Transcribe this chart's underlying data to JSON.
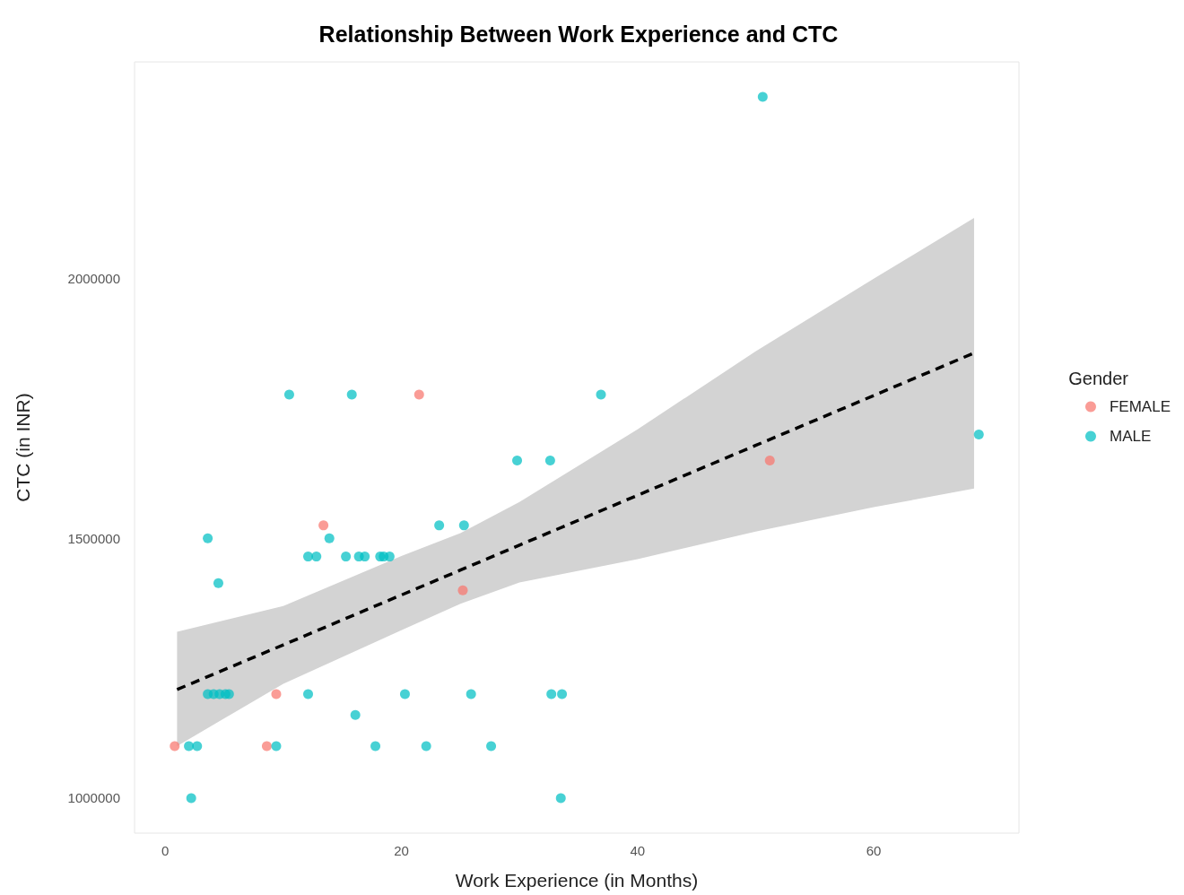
{
  "chart_data": {
    "type": "scatter",
    "title": "Relationship Between Work Experience and CTC",
    "xlabel": "Work Experience (in Months)",
    "ylabel": "CTC (in INR)",
    "legend_title": "Gender",
    "xlim": [
      -2.6,
      72.3
    ],
    "xticks": [
      0,
      20,
      40,
      60
    ],
    "ylim": [
      932500,
      2417500
    ],
    "yticks": [
      1000000,
      1500000,
      2000000
    ],
    "grid": false,
    "legend": "right",
    "marker": "circle",
    "series": [
      {
        "name": "FEMALE",
        "color": "#f8766d",
        "x": [
          21.5,
          13.4,
          25.2,
          9.4,
          0.8,
          8.6,
          51.2
        ],
        "values": [
          1777000,
          1525000,
          1400000,
          1200000,
          1100000,
          1100000,
          1650000
        ]
      },
      {
        "name": "MALE",
        "color": "#00bfc4",
        "x": [
          10.5,
          15.8,
          36.9,
          29.8,
          32.6,
          23.2,
          25.3,
          3.6,
          13.9,
          12.1,
          12.8,
          15.3,
          16.4,
          16.9,
          18.2,
          18.5,
          19.0,
          4.5,
          3.6,
          4.1,
          4.6,
          5.1,
          5.4,
          12.1,
          20.3,
          25.9,
          32.7,
          33.6,
          16.1,
          2.0,
          2.7,
          9.4,
          17.8,
          22.1,
          27.6,
          2.2,
          33.5,
          50.6,
          68.9
        ],
        "values": [
          1777000,
          1777000,
          1777000,
          1650000,
          1650000,
          1525000,
          1525000,
          1500000,
          1500000,
          1465000,
          1465000,
          1465000,
          1465000,
          1465000,
          1465000,
          1465000,
          1465000,
          1414000,
          1200000,
          1200000,
          1200000,
          1200000,
          1200000,
          1200000,
          1200000,
          1200000,
          1200000,
          1200000,
          1160000,
          1100000,
          1100000,
          1100000,
          1100000,
          1100000,
          1100000,
          1000000,
          1000000,
          2350000,
          1700000
        ]
      },
      {
        "type": "line",
        "color": "#000000",
        "line_style": "dashed",
        "marker": "none",
        "x": [
          1,
          10,
          20,
          25,
          30,
          40,
          50,
          60,
          68.5
        ],
        "values": [
          1209000,
          1295000,
          1391000,
          1439000,
          1487000,
          1583000,
          1679000,
          1775000,
          1857000
        ],
        "lower": [
          1100000,
          1220000,
          1323000,
          1374000,
          1415000,
          1460000,
          1513000,
          1560000,
          1596000
        ],
        "upper": [
          1320000,
          1370000,
          1466000,
          1510000,
          1570000,
          1710000,
          1860000,
          2000000,
          2117000
        ]
      }
    ]
  }
}
